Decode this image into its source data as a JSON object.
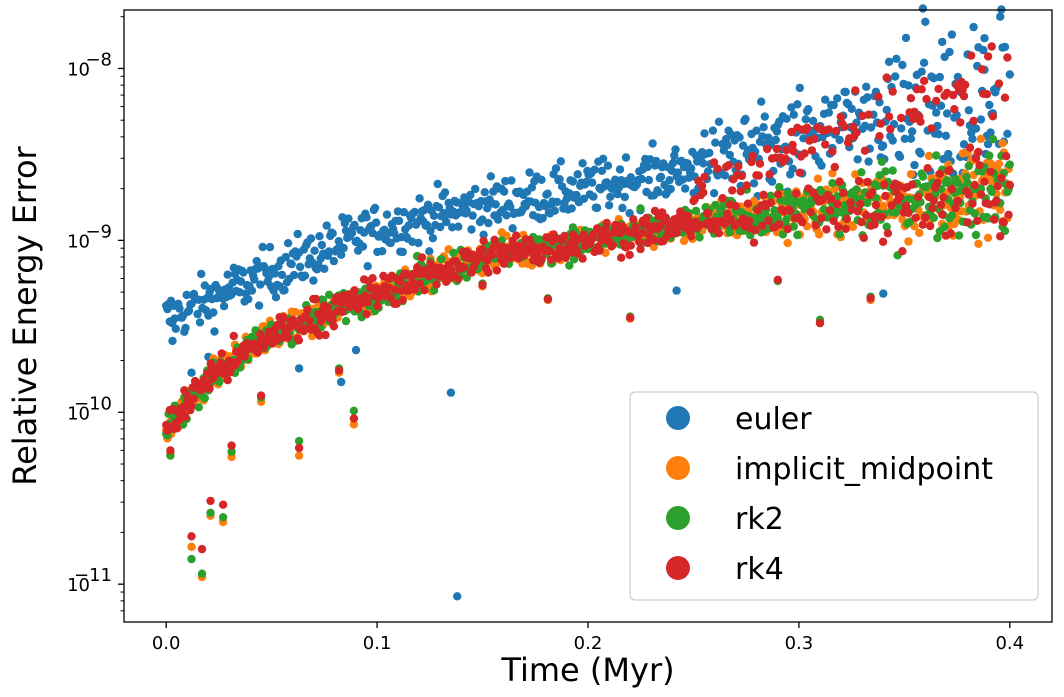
{
  "chart_data": {
    "type": "scatter",
    "title": "",
    "xlabel": "Time (Myr)",
    "ylabel": "Relative Energy Error",
    "xlim": [
      -0.02,
      0.42
    ],
    "ylim_log10": [
      -11.22,
      -7.66
    ],
    "yscale": "log",
    "grid": false,
    "legend_position": "lower-right",
    "x_ticks": [
      0.0,
      0.1,
      0.2,
      0.3,
      0.4
    ],
    "x_tick_labels": [
      "0.0",
      "0.1",
      "0.2",
      "0.3",
      "0.4"
    ],
    "y_ticks_log10": [
      -11,
      -10,
      -9,
      -8
    ],
    "y_tick_labels": [
      {
        "base": "10",
        "exp": "−11"
      },
      {
        "base": "10",
        "exp": "−10"
      },
      {
        "base": "10",
        "exp": "−9"
      },
      {
        "base": "10",
        "exp": "−8"
      }
    ],
    "series": [
      {
        "name": "euler",
        "color": "#1f77b4",
        "trend": [
          [
            0.0,
            3.5e-10
          ],
          [
            0.05,
            6.5e-10
          ],
          [
            0.1,
            1.15e-09
          ],
          [
            0.15,
            1.6e-09
          ],
          [
            0.2,
            2e-09
          ],
          [
            0.25,
            2.6e-09
          ],
          [
            0.3,
            3.1e-09
          ],
          [
            0.35,
            3.6e-09
          ],
          [
            0.4,
            4e-09
          ]
        ],
        "upper_trend": [
          [
            0.25,
            3.3e-09
          ],
          [
            0.3,
            5e-09
          ],
          [
            0.35,
            8e-09
          ],
          [
            0.39,
            1.2e-08
          ]
        ],
        "outliers": [
          [
            0.003,
            2.6e-10
          ],
          [
            0.012,
            1.7e-10
          ],
          [
            0.02,
            2.1e-10
          ],
          [
            0.045,
            3e-10
          ],
          [
            0.063,
            1.8e-10
          ],
          [
            0.083,
            1.5e-10
          ],
          [
            0.09,
            2.3e-10
          ],
          [
            0.135,
            1.3e-10
          ],
          [
            0.138,
            8.5e-12
          ],
          [
            0.242,
            5.1e-10
          ],
          [
            0.34,
            4.9e-10
          ],
          [
            0.388,
            1.5e-08
          ]
        ]
      },
      {
        "name": "implicit_midpoint",
        "color": "#ff7f0e",
        "trend": [
          [
            0.0,
            8e-11
          ],
          [
            0.02,
            1.6e-10
          ],
          [
            0.05,
            2.8e-10
          ],
          [
            0.1,
            5e-10
          ],
          [
            0.15,
            8e-10
          ],
          [
            0.2,
            1e-09
          ],
          [
            0.25,
            1.25e-09
          ],
          [
            0.3,
            1.5e-09
          ],
          [
            0.35,
            1.75e-09
          ],
          [
            0.4,
            2e-09
          ]
        ],
        "outliers": [
          [
            0.002,
            5.8e-11
          ],
          [
            0.012,
            1.65e-11
          ],
          [
            0.017,
            1.1e-11
          ],
          [
            0.021,
            2.5e-11
          ],
          [
            0.027,
            2.3e-11
          ],
          [
            0.031,
            5.5e-11
          ],
          [
            0.045,
            1.15e-10
          ],
          [
            0.063,
            5.6e-11
          ],
          [
            0.082,
            1.7e-10
          ],
          [
            0.089,
            8.5e-11
          ],
          [
            0.15,
            5.4e-10
          ],
          [
            0.181,
            4.5e-10
          ],
          [
            0.22,
            3.5e-10
          ],
          [
            0.31,
            3.3e-10
          ],
          [
            0.334,
            4.5e-10
          ]
        ]
      },
      {
        "name": "rk2",
        "color": "#2ca02c",
        "trend": [
          [
            0.0,
            8e-11
          ],
          [
            0.02,
            1.6e-10
          ],
          [
            0.05,
            2.8e-10
          ],
          [
            0.1,
            5e-10
          ],
          [
            0.15,
            8e-10
          ],
          [
            0.2,
            1e-09
          ],
          [
            0.25,
            1.25e-09
          ],
          [
            0.3,
            1.5e-09
          ],
          [
            0.35,
            1.75e-09
          ],
          [
            0.4,
            2e-09
          ]
        ],
        "outliers": [
          [
            0.002,
            5.6e-11
          ],
          [
            0.012,
            1.4e-11
          ],
          [
            0.017,
            1.15e-11
          ],
          [
            0.021,
            2.6e-11
          ],
          [
            0.027,
            2.45e-11
          ],
          [
            0.031,
            5.9e-11
          ],
          [
            0.045,
            1.22e-10
          ],
          [
            0.063,
            6.8e-11
          ],
          [
            0.082,
            1.8e-10
          ],
          [
            0.089,
            1.02e-10
          ],
          [
            0.15,
            5.6e-10
          ],
          [
            0.181,
            4.6e-10
          ],
          [
            0.22,
            3.6e-10
          ],
          [
            0.29,
            5.8e-10
          ],
          [
            0.31,
            3.45e-10
          ],
          [
            0.334,
            4.7e-10
          ]
        ]
      },
      {
        "name": "rk4",
        "color": "#d62728",
        "trend": [
          [
            0.0,
            8e-11
          ],
          [
            0.02,
            1.6e-10
          ],
          [
            0.05,
            2.8e-10
          ],
          [
            0.1,
            5e-10
          ],
          [
            0.15,
            8e-10
          ],
          [
            0.2,
            1e-09
          ],
          [
            0.25,
            1.25e-09
          ],
          [
            0.3,
            1.5e-09
          ],
          [
            0.35,
            1.75e-09
          ],
          [
            0.4,
            2e-09
          ]
        ],
        "upper_trend": [
          [
            0.25,
            2e-09
          ],
          [
            0.3,
            3.5e-09
          ],
          [
            0.35,
            6e-09
          ],
          [
            0.4,
            9e-09
          ]
        ],
        "outliers": [
          [
            0.002,
            6e-11
          ],
          [
            0.012,
            1.9e-11
          ],
          [
            0.017,
            1.6e-11
          ],
          [
            0.021,
            3.05e-11
          ],
          [
            0.027,
            2.9e-11
          ],
          [
            0.031,
            6.4e-11
          ],
          [
            0.045,
            1.25e-10
          ],
          [
            0.063,
            6.2e-11
          ],
          [
            0.082,
            1.75e-10
          ],
          [
            0.089,
            9.2e-11
          ],
          [
            0.15,
            5.5e-10
          ],
          [
            0.181,
            4.55e-10
          ],
          [
            0.22,
            3.55e-10
          ],
          [
            0.29,
            5.9e-10
          ],
          [
            0.31,
            3.3e-10
          ],
          [
            0.334,
            4.6e-10
          ]
        ]
      }
    ]
  }
}
